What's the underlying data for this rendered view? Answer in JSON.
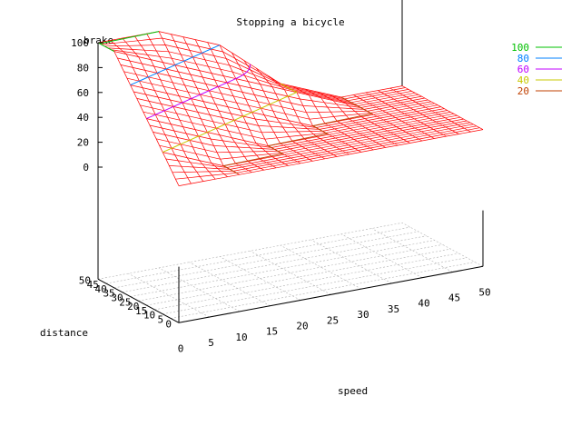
{
  "chart_data": {
    "type": "surface3d",
    "title": "Stopping a bicycle",
    "xlabel": "speed",
    "ylabel": "distance",
    "zlabel": "brake",
    "x_ticks": [
      "0",
      "5",
      "10",
      "15",
      "20",
      "25",
      "30",
      "35",
      "40",
      "45",
      "50"
    ],
    "y_ticks": [
      "0",
      "5",
      "10",
      "15",
      "20",
      "25",
      "30",
      "35",
      "40",
      "45",
      "50"
    ],
    "z_ticks": [
      "0",
      "20",
      "40",
      "60",
      "80",
      "100"
    ],
    "xlim": [
      0,
      50
    ],
    "ylim": [
      0,
      50
    ],
    "zlim": [
      0,
      100
    ],
    "grid_x": [
      0,
      10,
      20,
      30,
      40,
      50
    ],
    "grid_y": [
      0,
      10,
      20,
      30,
      40,
      50
    ],
    "brake_z": [
      [
        20,
        20,
        20,
        20,
        20,
        20
      ],
      [
        40,
        20,
        20,
        20,
        20,
        20
      ],
      [
        60,
        40,
        20,
        20,
        20,
        20
      ],
      [
        80,
        60,
        40,
        20,
        20,
        20
      ],
      [
        100,
        80,
        60,
        40,
        20,
        20
      ],
      [
        100,
        100,
        80,
        40,
        20,
        20
      ]
    ],
    "surface_color": "#ff0000",
    "legend_position": "top-right",
    "contour_levels": [
      {
        "name": "100",
        "color": "#00c000"
      },
      {
        "name": "80",
        "color": "#0080ff"
      },
      {
        "name": "60",
        "color": "#c000ff"
      },
      {
        "name": "40",
        "color": "#c8c800"
      },
      {
        "name": "20",
        "color": "#c04000"
      }
    ]
  }
}
